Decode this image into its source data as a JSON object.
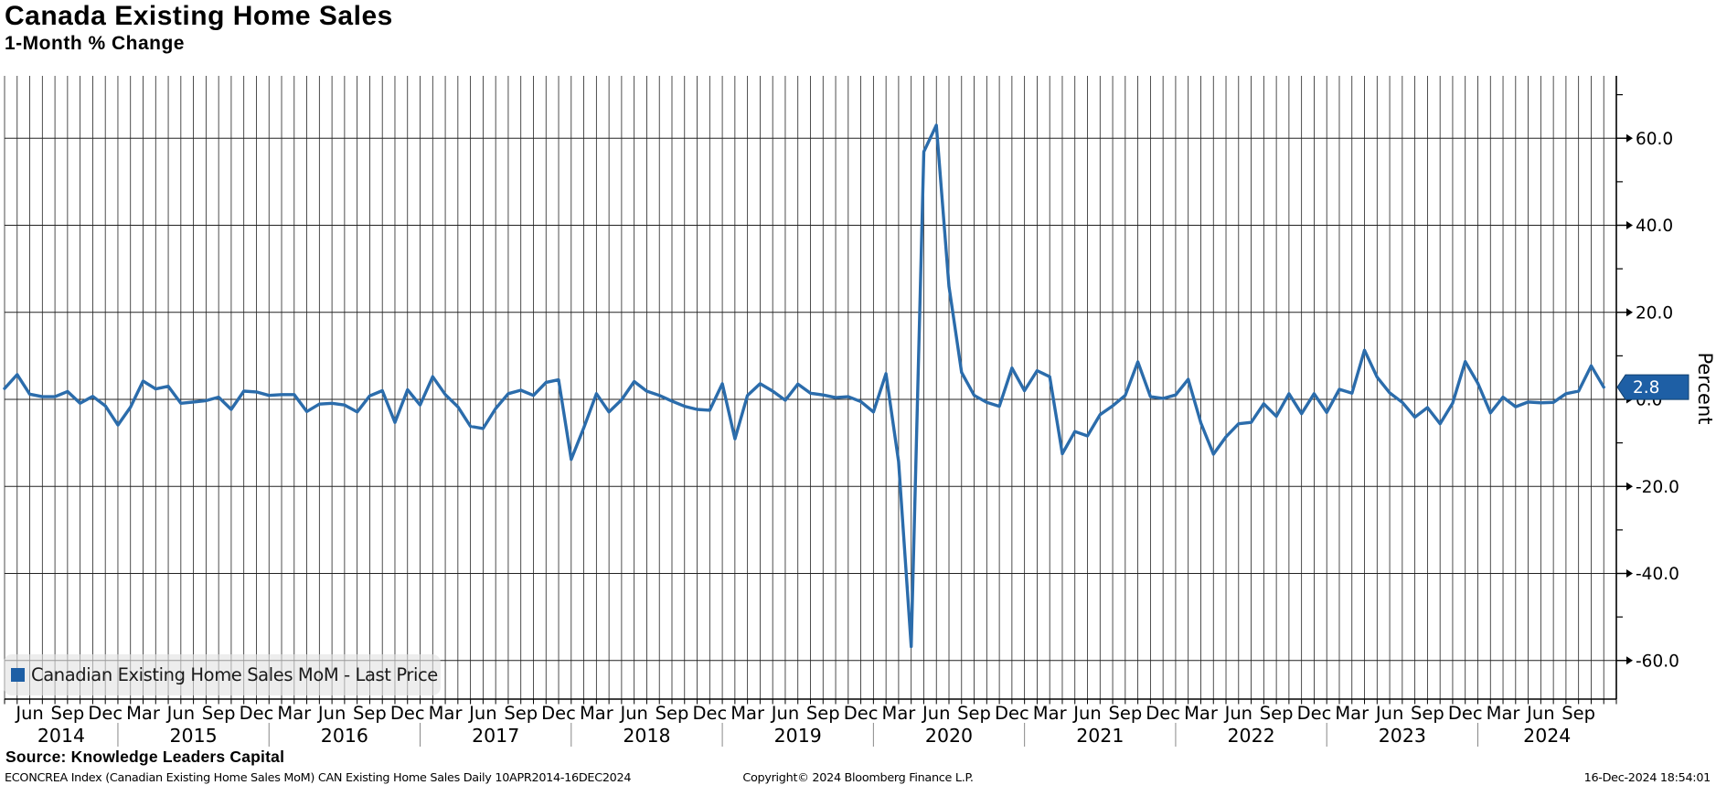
{
  "header": {
    "title": "Canada Existing Home Sales",
    "subtitle": "1-Month % Change"
  },
  "chart_data": {
    "type": "line",
    "title": "Canada Existing Home Sales",
    "subtitle": "1-Month % Change",
    "ylabel": "Percent",
    "ylim": [
      -68.9,
      74.3
    ],
    "grid": "on",
    "legend_position": "bottom-left",
    "x_start_month": "Apr 2014",
    "x_end_month": "Nov 2024",
    "x_domain_months": 128,
    "y_major_ticks": [
      {
        "label": "60.0",
        "value": 60
      },
      {
        "label": "40.0",
        "value": 40
      },
      {
        "label": "20.0",
        "value": 20
      },
      {
        "label": "0.0",
        "value": 0
      },
      {
        "label": "-20.0",
        "value": -20
      },
      {
        "label": "-40.0",
        "value": -40
      },
      {
        "label": "-60.0",
        "value": -60
      }
    ],
    "y_minor_ticks": [
      70,
      50,
      30,
      10,
      -10,
      -30,
      -50
    ],
    "x_tick_first_index": 2,
    "x_tick_step": 3,
    "x_tick_labels": [
      "Jun",
      "Sep",
      "Dec",
      "Mar",
      "Jun",
      "Sep",
      "Dec",
      "Mar",
      "Jun",
      "Sep",
      "Dec",
      "Mar",
      "Jun",
      "Sep",
      "Dec",
      "Mar",
      "Jun",
      "Sep",
      "Dec",
      "Mar",
      "Jun",
      "Sep",
      "Dec",
      "Mar",
      "Jun",
      "Sep",
      "Dec",
      "Mar",
      "Jun",
      "Sep",
      "Dec",
      "Mar",
      "Jun",
      "Sep",
      "Dec",
      "Mar",
      "Jun",
      "Sep",
      "Dec",
      "Mar",
      "Jun",
      "Sep"
    ],
    "year_labels": [
      "2014",
      "2015",
      "2016",
      "2017",
      "2018",
      "2019",
      "2020",
      "2021",
      "2022",
      "2023",
      "2024"
    ],
    "year_divider_indices": [
      9,
      21,
      33,
      45,
      57,
      69,
      81,
      93,
      105,
      117
    ],
    "series": [
      {
        "name": "Canadian Existing Home Sales MoM - Last Price",
        "color": "#2b6cab",
        "values": [
          2.5,
          5.7,
          1.2,
          0.6,
          0.6,
          1.8,
          -0.9,
          0.7,
          -1.5,
          -5.9,
          -1.8,
          4.2,
          2.4,
          3.0,
          -0.9,
          -0.6,
          -0.3,
          0.5,
          -2.3,
          1.9,
          1.7,
          0.9,
          1.1,
          1.1,
          -2.8,
          -1.1,
          -0.9,
          -1.3,
          -2.9,
          0.8,
          2.0,
          -5.3,
          2.2,
          -1.3,
          5.2,
          1.1,
          -1.7,
          -6.2,
          -6.7,
          -2.1,
          1.3,
          2.1,
          0.9,
          3.9,
          4.5,
          -13.8,
          -6.5,
          1.3,
          -2.9,
          -0.1,
          4.1,
          1.9,
          0.9,
          -0.4,
          -1.6,
          -2.3,
          -2.5,
          3.6,
          -9.1,
          0.9,
          3.6,
          1.9,
          -0.2,
          3.5,
          1.4,
          1.0,
          0.4,
          0.6,
          -0.5,
          -2.9,
          5.9,
          -14.3,
          -56.8,
          56.9,
          63.0,
          26.0,
          6.2,
          0.9,
          -0.7,
          -1.6,
          7.2,
          2.0,
          6.6,
          5.2,
          -12.5,
          -7.4,
          -8.4,
          -3.5,
          -1.5,
          0.9,
          8.6,
          0.6,
          0.2,
          1.0,
          4.6,
          -5.4,
          -12.6,
          -8.6,
          -5.6,
          -5.3,
          -1.0,
          -3.9,
          1.3,
          -3.3,
          1.3,
          -3.0,
          2.3,
          1.4,
          11.3,
          5.1,
          1.5,
          -0.7,
          -4.1,
          -1.9,
          -5.6,
          -0.9,
          8.7,
          3.7,
          -3.1,
          0.5,
          -1.7,
          -0.6,
          -0.8,
          -0.7,
          1.3,
          1.9,
          7.7,
          2.8
        ]
      }
    ]
  },
  "legend": {
    "label": "Canadian Existing Home Sales MoM - Last Price",
    "marker_color": "#1e5fa5"
  },
  "last_price": {
    "label": "2.8",
    "value": 2.8,
    "box_color": "#1e5fa5",
    "border_color": "#11406f",
    "text_color": "#ffffff"
  },
  "source": "Source: Knowledge Leaders Capital",
  "footer": {
    "left": "ECONCREA Index (Canadian Existing Home Sales MoM) CAN Existing Home Sales  Daily 10APR2014-16DEC2024",
    "center": "Copyright© 2024 Bloomberg Finance L.P.",
    "right": "16-Dec-2024 18:54:01"
  },
  "colors": {
    "grid": "#222222",
    "axis": "#000000",
    "year_divider": "#888888",
    "background": "#ffffff"
  }
}
